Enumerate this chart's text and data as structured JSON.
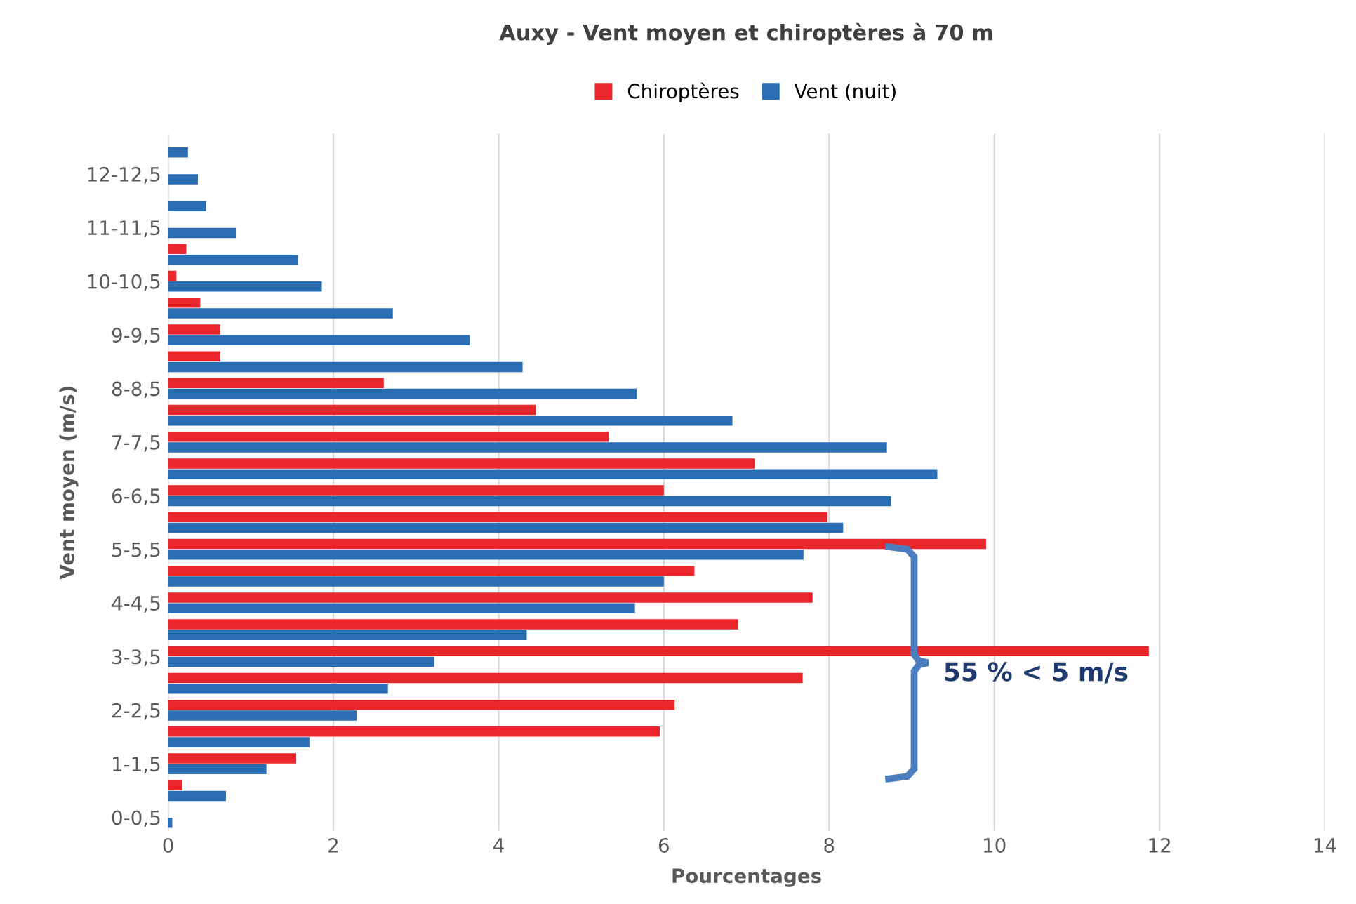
{
  "chart_data": {
    "type": "bar",
    "orientation": "horizontal",
    "title": "Auxy - Vent moyen et chiroptères à 70 m",
    "xlabel": "Pourcentages",
    "ylabel": "Vent moyen (m/s)",
    "categories": [
      null,
      "12-12,5",
      null,
      "11-11,5",
      null,
      "10-10,5",
      null,
      "9-9,5",
      null,
      "8-8,5",
      null,
      "7-7,5",
      null,
      "6-6,5",
      null,
      "5-5,5",
      null,
      "4-4,5",
      null,
      "3-3,5",
      null,
      "2-2,5",
      null,
      "1-1,5",
      null,
      "0-0,5"
    ],
    "series": [
      {
        "name": "Chiroptères",
        "color": "#e8262b",
        "values": [
          0,
          0,
          0,
          0,
          0.22,
          0.1,
          0.39,
          0.63,
          0.63,
          2.61,
          4.45,
          5.33,
          7.1,
          6.0,
          7.98,
          9.9,
          6.37,
          7.8,
          6.9,
          11.87,
          7.68,
          6.13,
          5.95,
          1.55,
          0.17,
          0
        ]
      },
      {
        "name": "Vent (nuit)",
        "color": "#2a6db3",
        "values": [
          0.24,
          0.36,
          0.46,
          0.82,
          1.57,
          1.86,
          2.72,
          3.65,
          4.29,
          5.67,
          6.83,
          8.7,
          9.31,
          8.75,
          8.17,
          7.69,
          6.0,
          5.65,
          4.34,
          3.22,
          2.66,
          2.28,
          1.71,
          1.19,
          0.7,
          0.05
        ]
      }
    ],
    "xlim": [
      0,
      14
    ],
    "xticks": [
      0,
      2,
      4,
      6,
      8,
      10,
      12,
      14
    ],
    "grid": "x",
    "legend": "top",
    "annotations": [
      "55 % < 5 m/s"
    ]
  }
}
